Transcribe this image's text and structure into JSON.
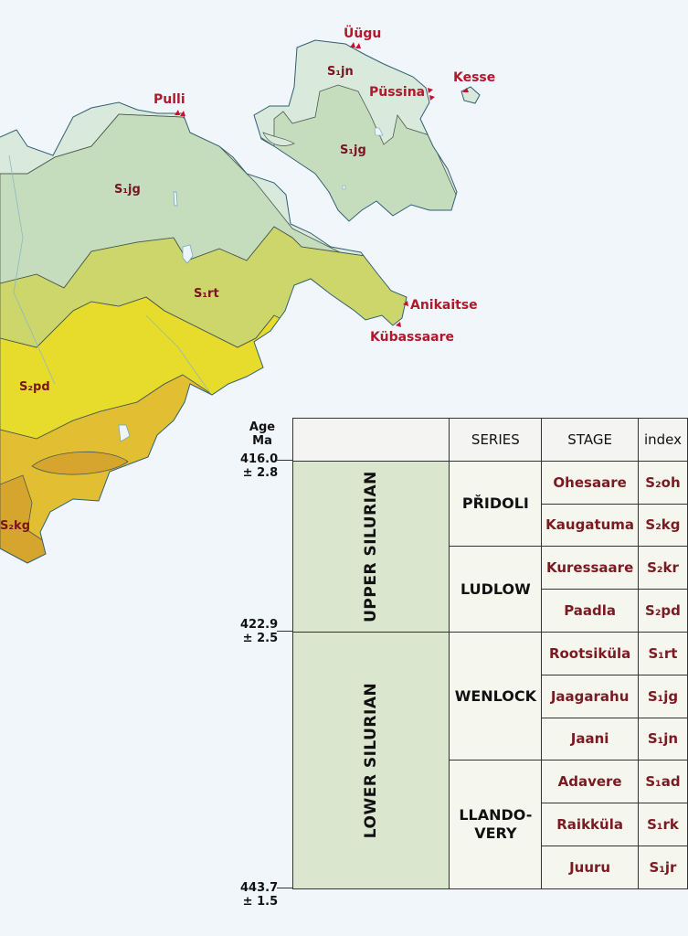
{
  "colors": {
    "sea": "#f1f6fb",
    "S1jn": "#d9e9dc",
    "S1jg": "#c6ddbd",
    "S1rt": "#cdd66a",
    "S2pd": "#e7dc2c",
    "S2kr": "#e2be33",
    "S2kg": "#d6a52d",
    "label": "#b2182b",
    "stage_text": "#7a1a22",
    "period_fill": "#dbe6cf"
  },
  "map": {
    "localities": [
      "Üügu",
      "Püssina",
      "Kesse",
      "Pulli",
      "Anikaitse",
      "Kübassaare"
    ],
    "units": {
      "island_jn": "S₁jn",
      "island_jg": "S₁jg",
      "main_jg": "S₁jg",
      "main_rt": "S₁rt",
      "main_pd": "S₂pd",
      "main_kg": "S₂kg"
    },
    "marker_icon": "red-triangle-outcrop-marker"
  },
  "table": {
    "age_header": [
      "Age",
      "Ma"
    ],
    "ages": [
      {
        "value": "416.0",
        "err": "± 2.8"
      },
      {
        "value": "422.9",
        "err": "± 2.5"
      },
      {
        "value": "443.7",
        "err": "± 1.5"
      }
    ],
    "headers": {
      "series": "SERIES",
      "stage": "STAGE",
      "index": "index"
    },
    "periods": [
      "UPPER SILURIAN",
      "LOWER SILURIAN"
    ],
    "series": [
      "PŘIDOLI",
      "LUDLOW",
      "WENLOCK",
      "LLANDO-\nVERY"
    ],
    "rows": [
      {
        "stage": "Ohesaare",
        "index": "S₂oh"
      },
      {
        "stage": "Kaugatuma",
        "index": "S₂kg"
      },
      {
        "stage": "Kuressaare",
        "index": "S₂kr"
      },
      {
        "stage": "Paadla",
        "index": "S₂pd"
      },
      {
        "stage": "Rootsiküla",
        "index": "S₁rt"
      },
      {
        "stage": "Jaagarahu",
        "index": "S₁jg"
      },
      {
        "stage": "Jaani",
        "index": "S₁jn"
      },
      {
        "stage": "Adavere",
        "index": "S₁ad"
      },
      {
        "stage": "Raikküla",
        "index": "S₁rk"
      },
      {
        "stage": "Juuru",
        "index": "S₁jr"
      }
    ]
  }
}
